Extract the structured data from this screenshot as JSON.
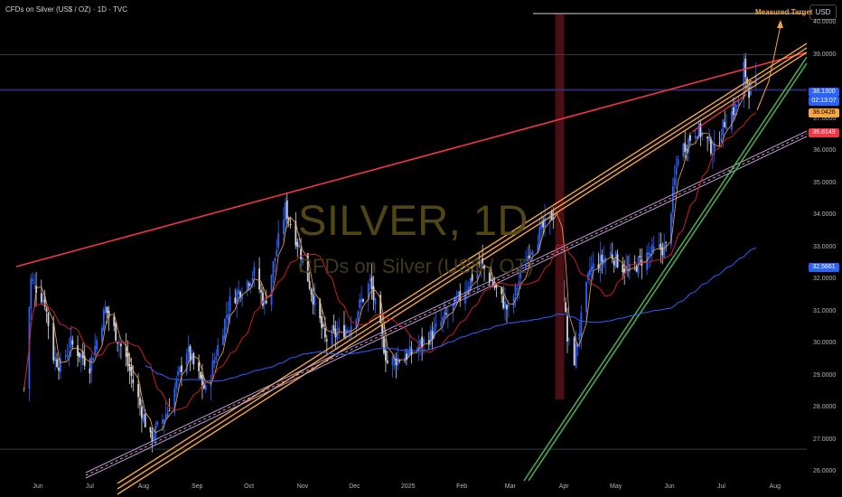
{
  "header": {
    "title": "CFDs on Silver (US$ / OZ) · 1D · TVC"
  },
  "watermark": {
    "line1": "SILVER, 1D",
    "line2": "CFDs on Silver (US$ / OZ)"
  },
  "currency_button": "USD",
  "annotation": {
    "measured_target": "Measured Target"
  },
  "colors": {
    "candle_up": "#2962ff",
    "candle_down": "#d1d4dc",
    "wedge_top": "#f23645",
    "channel": "#f7a540",
    "support": "#4caf50",
    "sma_fast": "#f7a540",
    "sma_mid": "#c81d25",
    "sma_slow": "#2962ff",
    "last_price": "#2962ff"
  },
  "badges": {
    "last_price": "38.1300",
    "countdown": "02:13:07",
    "sma_fast": "38.0426",
    "sma_mid": "36.8149",
    "sma_slow": "32.5661"
  },
  "chart_data": {
    "type": "candlestick",
    "title": "CFDs on Silver (US$ / OZ) · 1D · TVC",
    "ylim": [
      26.0,
      40.3
    ],
    "y_ticks": [
      "40.0000",
      "39.0000",
      "37.0000",
      "36.0000",
      "35.0000",
      "34.0000",
      "33.0000",
      "32.0000",
      "31.0000",
      "30.0000",
      "29.0000",
      "28.0000",
      "27.0000",
      "26.0000"
    ],
    "x_ticks": [
      "Jun",
      "Jul",
      "Aug",
      "Sep",
      "Oct",
      "Nov",
      "Dec",
      "2025",
      "Feb",
      "Mar",
      "Apr",
      "May",
      "Jun",
      "Jul",
      "Aug"
    ],
    "grid": false,
    "close_path": [
      [
        "May 24",
        28.6
      ],
      [
        "May 28",
        32.0
      ],
      [
        "Jun 5",
        31.3
      ],
      [
        "Jun 10",
        29.6
      ],
      [
        "Jun 14",
        29.3
      ],
      [
        "Jun 20",
        30.0
      ],
      [
        "Jul 1",
        29.3
      ],
      [
        "Jul 10",
        31.1
      ],
      [
        "Jul 22",
        29.5
      ],
      [
        "Aug 5",
        27.0
      ],
      [
        "Aug 15",
        27.9
      ],
      [
        "Aug 26",
        29.8
      ],
      [
        "Sep 6",
        28.5
      ],
      [
        "Sep 20",
        31.3
      ],
      [
        "Oct 4",
        32.2
      ],
      [
        "Oct 10",
        31.2
      ],
      [
        "Oct 22",
        34.2
      ],
      [
        "Oct 30",
        33.0
      ],
      [
        "Nov 14",
        30.1
      ],
      [
        "Nov 28",
        30.5
      ],
      [
        "Dec 10",
        31.9
      ],
      [
        "Dec 20",
        29.4
      ],
      [
        "Jan 3",
        29.7
      ],
      [
        "Jan 15",
        30.3
      ],
      [
        "Jan 28",
        31.2
      ],
      [
        "Feb 12",
        32.5
      ],
      [
        "Feb 28",
        31.0
      ],
      [
        "Mar 12",
        32.9
      ],
      [
        "Mar 20",
        33.6
      ],
      [
        "Mar 28",
        34.2
      ],
      [
        "Apr 3",
        30.1
      ],
      [
        "Apr 7",
        29.5
      ],
      [
        "Apr 16",
        32.3
      ],
      [
        "Apr 28",
        32.8
      ],
      [
        "May 8",
        32.2
      ],
      [
        "May 20",
        32.8
      ],
      [
        "May 30",
        33.0
      ],
      [
        "Jun 6",
        35.9
      ],
      [
        "Jun 17",
        36.7
      ],
      [
        "Jun 27",
        36.0
      ],
      [
        "Jul 3",
        36.9
      ],
      [
        "Jul 11",
        37.5
      ],
      [
        "Jul 14",
        38.6
      ],
      [
        "Jul 17",
        37.9
      ],
      [
        "Jul 21",
        38.1
      ]
    ],
    "trendlines": [
      {
        "name": "wedge top",
        "from": [
          "May 24",
          32.6
        ],
        "to": [
          "Aug 31",
          38.8
        ]
      },
      {
        "name": "channel",
        "from": [
          "Aug 1",
          26.0
        ],
        "to": [
          "Aug 3",
          39.5
        ]
      },
      {
        "name": "support",
        "from": [
          "Mar 1",
          26.0
        ],
        "to": [
          "Aug 3",
          38.9
        ]
      }
    ],
    "horizontal_lines": [
      37.9,
      39.0,
      26.7
    ],
    "measured_target_level": 40.5
  }
}
